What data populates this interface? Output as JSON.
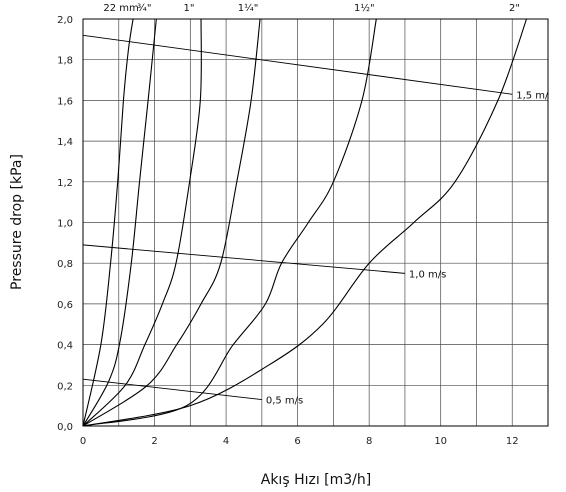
{
  "chart_data": {
    "type": "line",
    "xlabel": "Akış Hızı [m3/h]",
    "ylabel": "Pressure drop [kPa]",
    "xlim": [
      0,
      13
    ],
    "ylim": [
      0,
      2.0
    ],
    "x_ticks": [
      "0",
      "2",
      "4",
      "6",
      "8",
      "10",
      "12"
    ],
    "x_tick_values": [
      0,
      2,
      4,
      6,
      8,
      10,
      12
    ],
    "y_ticks": [
      "0,0",
      "0,2",
      "0,4",
      "0,6",
      "0,8",
      "1,0",
      "1,2",
      "1,4",
      "1,6",
      "1,8",
      "2,0"
    ],
    "y_tick_values": [
      0,
      0.2,
      0.4,
      0.6,
      0.8,
      1.0,
      1.2,
      1.4,
      1.6,
      1.8,
      2.0
    ],
    "grid": true,
    "series": [
      {
        "name": "22 mm",
        "x": [
          0,
          0.5,
          0.77,
          0.97,
          1.13,
          1.27,
          1.4
        ],
        "y": [
          0,
          0.4,
          0.8,
          1.2,
          1.6,
          1.85,
          2.0
        ]
      },
      {
        "name": "¾\"",
        "x": [
          0,
          0.72,
          1.04,
          1.35,
          1.58,
          1.82,
          2.05
        ],
        "y": [
          0,
          0.22,
          0.42,
          0.8,
          1.2,
          1.6,
          2.0
        ]
      },
      {
        "name": "1\"",
        "x": [
          0,
          1.18,
          1.73,
          2.22,
          2.6,
          2.98,
          3.28,
          3.3
        ],
        "y": [
          0,
          0.2,
          0.4,
          0.6,
          0.8,
          1.2,
          1.6,
          2.0
        ]
      },
      {
        "name": "1¼\"",
        "x": [
          0,
          1.8,
          2.62,
          3.3,
          3.85,
          4.3,
          4.7,
          4.95
        ],
        "y": [
          0,
          0.2,
          0.4,
          0.6,
          0.8,
          1.2,
          1.6,
          2.0
        ]
      },
      {
        "name": "1½\"",
        "x": [
          0,
          2.9,
          4.2,
          5.1,
          5.55,
          6.3,
          7.0,
          7.8,
          8.2
        ],
        "y": [
          0,
          0.1,
          0.4,
          0.6,
          0.8,
          1.0,
          1.2,
          1.6,
          2.0
        ]
      },
      {
        "name": "2\"",
        "x": [
          0,
          3.0,
          5.2,
          6.7,
          8.0,
          9.25,
          10.4,
          11.6,
          12.4
        ],
        "y": [
          0,
          0.1,
          0.3,
          0.5,
          0.8,
          1.0,
          1.2,
          1.6,
          2.0
        ]
      }
    ],
    "velocity_lines": [
      {
        "label": "0,5 m/s",
        "x": [
          0,
          5.0
        ],
        "y": [
          0.23,
          0.13
        ]
      },
      {
        "label": "1,0 m/s",
        "x": [
          0,
          9.0
        ],
        "y": [
          0.89,
          0.75
        ]
      },
      {
        "label": "1,5 m/",
        "x": [
          0,
          12.0
        ],
        "y": [
          1.92,
          1.63
        ]
      }
    ]
  }
}
